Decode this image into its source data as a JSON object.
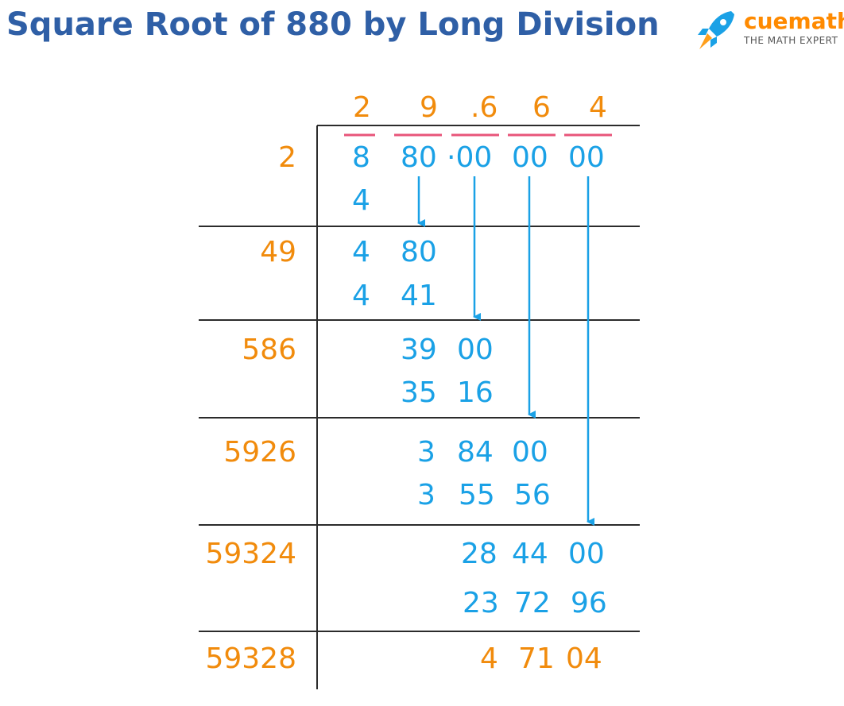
{
  "header": {
    "title": "Square Root of 880 by Long Division",
    "brand": "cuemath",
    "tagline": "THE MATH EXPERT"
  },
  "quotient": [
    "2",
    "9",
    ".6",
    "6",
    "4"
  ],
  "dividend": [
    "8",
    "80",
    "·00",
    "00",
    "00"
  ],
  "divisors": [
    "2",
    "49",
    "586",
    "5926",
    "59324",
    "59328"
  ],
  "steps": {
    "s1_sub": "4",
    "s2_rem_a": "4",
    "s2_rem_b": "80",
    "s2_sub_a": "4",
    "s2_sub_b": "41",
    "s3_rem_a": "39",
    "s3_rem_b": "00",
    "s3_sub_a": "35",
    "s3_sub_b": "16",
    "s4_rem_a": "3",
    "s4_rem_b": "84",
    "s4_rem_c": "00",
    "s4_sub_a": "3",
    "s4_sub_b": "55",
    "s4_sub_c": "56",
    "s5_rem_a": "28",
    "s5_rem_b": "44",
    "s5_rem_c": "00",
    "s5_sub_a": "23",
    "s5_sub_b": "72",
    "s5_sub_c": "96",
    "final_a": "4",
    "final_b": "71",
    "final_c": "04"
  },
  "colors": {
    "title": "#2f5fa6",
    "divisor": "#f18b0c",
    "work": "#1aa1e6",
    "bar": "#e8557a",
    "rule": "#2b2b2b"
  },
  "icons": [
    "rocket-icon"
  ]
}
